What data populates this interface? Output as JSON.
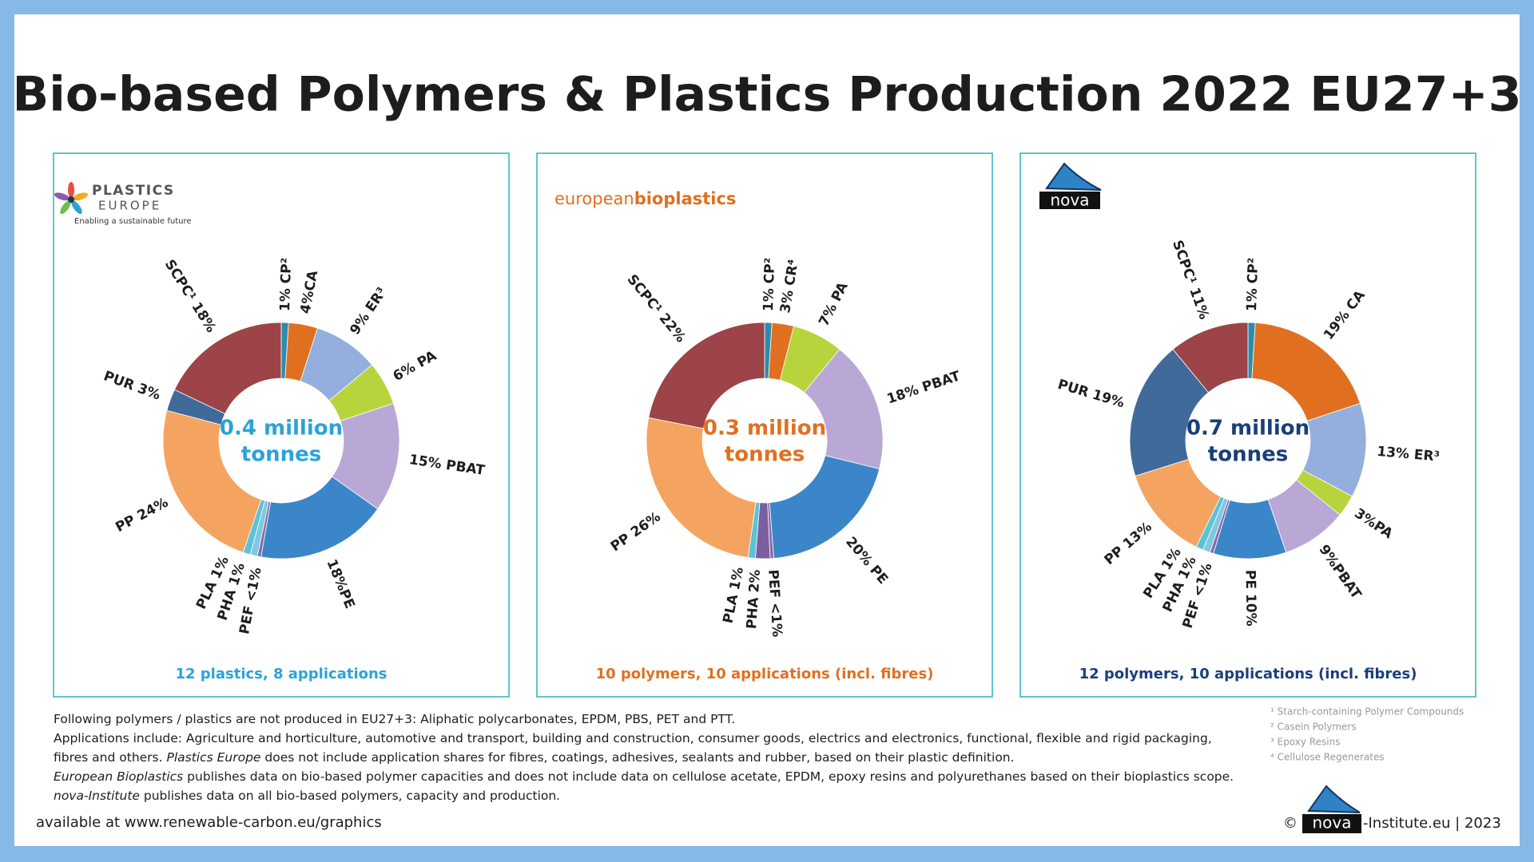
{
  "title": "Bio-based Polymers & Plastics Production 2022 EU27+3",
  "chart_data": [
    {
      "type": "donut",
      "logo": [
        "PLASTICS",
        "EUROPE",
        "Enabling a sustainable future"
      ],
      "center_text": [
        "0.4 million",
        "tonnes"
      ],
      "caption": "12 plastics, 8 applications",
      "accent": "#2aa3d8",
      "labels": [
        "1% CP²",
        "4%CA",
        "9% ER³",
        "6% PA",
        "15% PBAT",
        "18%PE",
        "PEF <1%",
        "PHA 1%",
        "PLA 1%",
        "PP 24%",
        "PUR 3%",
        "SCPC¹ 18%"
      ],
      "values": [
        1,
        4,
        9,
        6,
        15,
        18,
        0.5,
        1,
        1,
        24,
        3,
        18
      ],
      "colors": [
        "#2e8bab",
        "#e07020",
        "#94aedd",
        "#b8d43c",
        "#b9a8d6",
        "#3a86c8",
        "#8a6aaa",
        "#7fc8e0",
        "#5cc2d8",
        "#f4a460",
        "#3f6a9a",
        "#9c4447"
      ]
    },
    {
      "type": "donut",
      "logo": [
        "european",
        "bioplastics"
      ],
      "center_text": [
        "0.3 million",
        "tonnes"
      ],
      "caption": "10 polymers, 10 applications (incl. fibres)",
      "accent": "#e07020",
      "labels": [
        "1% CP²",
        "3% CR⁴",
        "7% PA",
        "18% PBAT",
        "20% PE",
        "PEF <1%",
        "PHA 2%",
        "PLA 1%",
        "PP 26%",
        "SCPC¹ 22%"
      ],
      "values": [
        1,
        3,
        7,
        18,
        20,
        0.5,
        2,
        1,
        26,
        22
      ],
      "colors": [
        "#2e8bab",
        "#e07020",
        "#b8d43c",
        "#b9a8d6",
        "#3a86c8",
        "#8a6aaa",
        "#7a5f9e",
        "#5cc2d8",
        "#f4a460",
        "#9c4447"
      ]
    },
    {
      "type": "donut",
      "logo": [
        "nova"
      ],
      "center_text": [
        "0.7 million",
        "tonnes"
      ],
      "caption": "12 polymers, 10 applications (incl. fibres)",
      "accent": "#1a3e7a",
      "labels": [
        "1% CP²",
        "19% CA",
        "13% ER³",
        "3%PA",
        "9%PBAT",
        "PE 10%",
        "PEF <1%",
        "PHA 1%",
        "PLA 1%",
        "PP 13%",
        "PUR 19%",
        "SCPC¹ 11%"
      ],
      "values": [
        1,
        19,
        13,
        3,
        9,
        10,
        0.5,
        1,
        1,
        13,
        19,
        11
      ],
      "colors": [
        "#2e8bab",
        "#e07020",
        "#94aedd",
        "#b8d43c",
        "#b9a8d6",
        "#3a86c8",
        "#8a6aaa",
        "#7fc8e0",
        "#5cc2d8",
        "#f4a460",
        "#3f6a9a",
        "#9c4447"
      ]
    }
  ],
  "notes": [
    [
      "Following polymers / plastics are not produced in EU27+3: Aliphatic polycarbonates, EPDM, PBS, PET and PTT."
    ],
    [
      "Applications include: Agriculture and horticulture, automotive and transport, building and construction, consumer goods, electrics and electronics, functional, flexible and rigid packaging,"
    ],
    [
      "fibres and others. ",
      "Plastics Europe",
      " does not include application shares for fibres, coatings, adhesives, sealants and rubber, based on their plastic definition."
    ],
    [
      "European Bioplastics",
      " publishes data on bio-based polymer capacities and does not include data on cellulose acetate, EPDM, epoxy resins and polyurethanes based on their bioplastics scope."
    ],
    [
      "nova-Institute",
      " publishes data on all bio-based polymers, capacity and production."
    ]
  ],
  "footnotes": [
    "¹ Starch-containing Polymer Compounds",
    "² Casein Polymers",
    "³ Epoxy Resins",
    "⁴ Cellulose Regenerates"
  ],
  "source": "available at www.renewable-carbon.eu/graphics",
  "copyright": [
    "©",
    "nova",
    "-Institute.eu | 2023"
  ]
}
